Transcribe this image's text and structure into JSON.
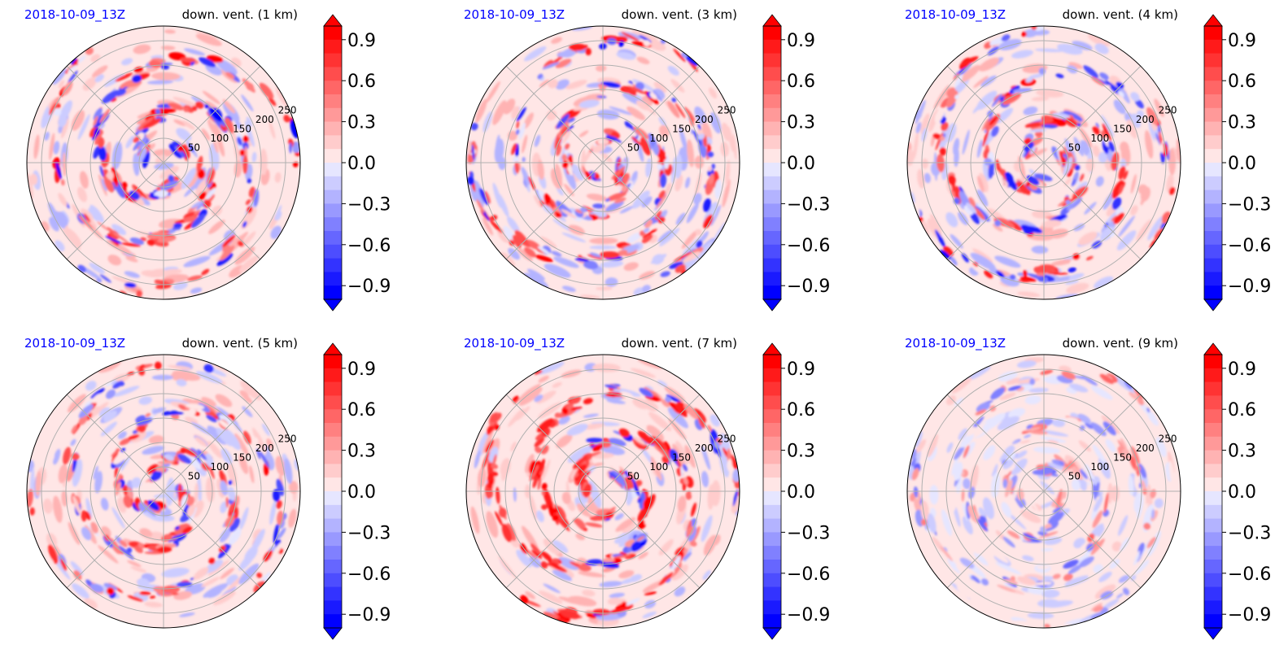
{
  "chart_data": [
    {
      "type": "heatmap",
      "projection": "polar",
      "date": "2018-10-09_13Z",
      "title": "down. vent. (1 km)",
      "rings": [
        50,
        100,
        150,
        200,
        250
      ],
      "seed": 11,
      "pattern": "spiral-strong"
    },
    {
      "type": "heatmap",
      "projection": "polar",
      "date": "2018-10-09_13Z",
      "title": "down. vent. (3 km)",
      "rings": [
        50,
        100,
        150,
        200,
        250
      ],
      "seed": 23,
      "pattern": "mixed"
    },
    {
      "type": "heatmap",
      "projection": "polar",
      "date": "2018-10-09_13Z",
      "title": "down. vent. (4 km)",
      "rings": [
        50,
        100,
        150,
        200,
        250
      ],
      "seed": 37,
      "pattern": "mixed"
    },
    {
      "type": "heatmap",
      "projection": "polar",
      "date": "2018-10-09_13Z",
      "title": "down. vent. (5 km)",
      "rings": [
        50,
        100,
        150,
        200,
        250
      ],
      "seed": 41,
      "pattern": "rings"
    },
    {
      "type": "heatmap",
      "projection": "polar",
      "date": "2018-10-09_13Z",
      "title": "down. vent. (7 km)",
      "rings": [
        50,
        100,
        150,
        200,
        250
      ],
      "seed": 53,
      "pattern": "west-bands"
    },
    {
      "type": "heatmap",
      "projection": "polar",
      "date": "2018-10-09_13Z",
      "title": "down. vent. (9 km)",
      "rings": [
        50,
        100,
        150,
        200,
        250
      ],
      "seed": 67,
      "pattern": "weak"
    }
  ],
  "colorbar": {
    "ticks": [
      "0.9",
      "0.6",
      "0.3",
      "0.0",
      "−0.3",
      "−0.6",
      "−0.9"
    ],
    "vmin": -1.0,
    "vmax": 1.0,
    "levels": 20,
    "extend": "both",
    "colormap": "bwr",
    "low_color": "#0000ff",
    "mid_color": "#ffffff",
    "high_color": "#ff0000"
  }
}
